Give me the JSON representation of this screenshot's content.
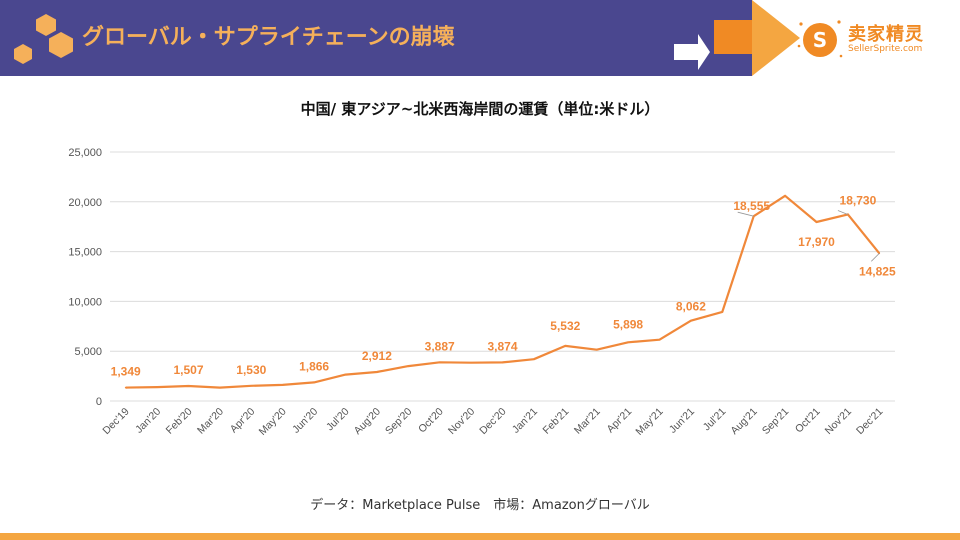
{
  "header": {
    "title": "グローバル・サプライチェーンの崩壊",
    "logo_name": "卖家精灵",
    "logo_url": "SellerSprite.com"
  },
  "colors": {
    "header_bg": "#4a478f",
    "accent": "#f08a24",
    "line": "#f0883a",
    "footer": "#f4a641"
  },
  "icons": [
    "hexagon-cluster-icon",
    "right-arrow-icon",
    "sellersprite-logo-icon"
  ],
  "chart_data": {
    "type": "line",
    "title": "中国/ 東アジア~北米西海岸間の運賃（単位:米ドル）",
    "xlabel": "",
    "ylabel": "",
    "ylim": [
      0,
      25000
    ],
    "yticks": [
      "25,000",
      "20,000",
      "15,000",
      "10,000",
      "5,000",
      "0"
    ],
    "grid": true,
    "categories": [
      "Dec'19",
      "Jan'20",
      "Feb'20",
      "Mar'20",
      "Apr'20",
      "May'20",
      "Jun'20",
      "Jul'20",
      "Aug'20",
      "Sep'20",
      "Oct'20",
      "Nov'20",
      "Dec'20",
      "Jan'21",
      "Feb'21",
      "Mar'21",
      "Apr'21",
      "May'21",
      "Jun'21",
      "Jul'21",
      "Aug'21",
      "Sep'21",
      "Oct'21",
      "Nov'21",
      "Dec'21"
    ],
    "values": [
      1349,
      1400,
      1507,
      1350,
      1530,
      1620,
      1866,
      2650,
      2912,
      3500,
      3887,
      3850,
      3874,
      4200,
      5532,
      5150,
      5898,
      6150,
      8062,
      8950,
      18555,
      20600,
      17970,
      18730,
      14825
    ],
    "data_labels": [
      {
        "index": 0,
        "text": "1,349"
      },
      {
        "index": 2,
        "text": "1,507"
      },
      {
        "index": 4,
        "text": "1,530"
      },
      {
        "index": 6,
        "text": "1,866"
      },
      {
        "index": 8,
        "text": "2,912"
      },
      {
        "index": 10,
        "text": "3,887"
      },
      {
        "index": 12,
        "text": "3,874"
      },
      {
        "index": 14,
        "text": "5,532"
      },
      {
        "index": 16,
        "text": "5,898"
      },
      {
        "index": 18,
        "text": "8,062"
      },
      {
        "index": 20,
        "text": "18,555"
      },
      {
        "index": 22,
        "text": "17,970"
      },
      {
        "index": 23,
        "text": "18,730"
      },
      {
        "index": 24,
        "text": "14,825"
      }
    ]
  },
  "source": "データ：Marketplace Pulse　市場：Amazonグローバル"
}
